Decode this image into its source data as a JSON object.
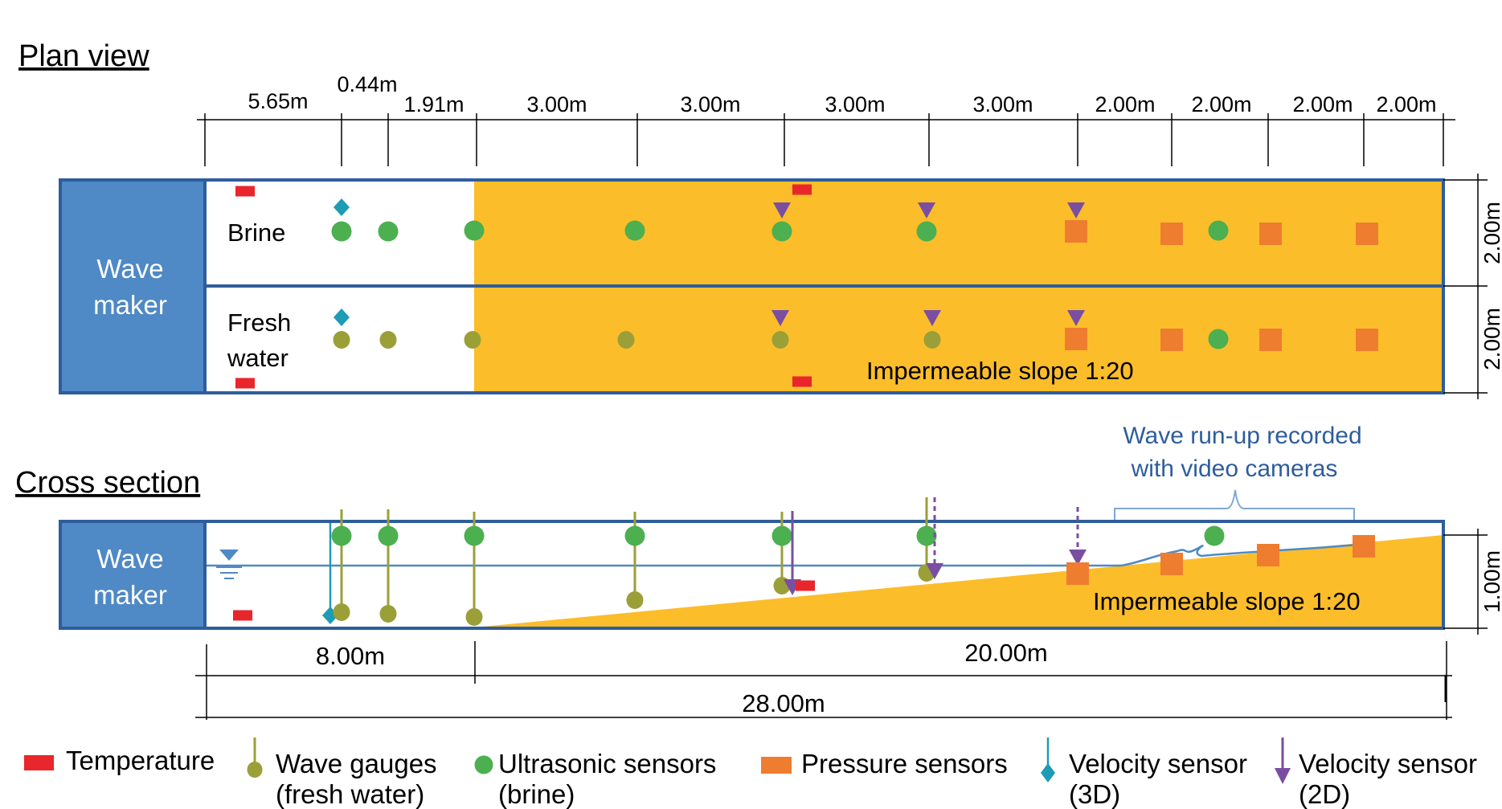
{
  "plan_view": {
    "title": "Plan view",
    "segment_labels": [
      "5.65m",
      "0.44m",
      "1.91m",
      "3.00m",
      "3.00m",
      "3.00m",
      "3.00m",
      "2.00m",
      "2.00m",
      "2.00m",
      "2.00m"
    ],
    "width_labels": [
      "2.00m",
      "2.00m"
    ],
    "wave_maker": [
      "Wave",
      "maker"
    ],
    "channel_brine": "Brine",
    "channel_fresh": [
      "Fresh",
      "water"
    ],
    "slope_label": "Impermeable slope 1:20"
  },
  "cross_section": {
    "title": "Cross section",
    "wave_maker": [
      "Wave",
      "maker"
    ],
    "slope_label": "Impermeable slope 1:20",
    "runup_label": [
      "Wave run-up recorded",
      "with video cameras"
    ],
    "depth_label": "1.00m",
    "length_labels": {
      "flat": "8.00m",
      "slope": "20.00m",
      "total": "28.00m"
    }
  },
  "legend": [
    {
      "icon": "temperature-icon",
      "lines": [
        "Temperature"
      ]
    },
    {
      "icon": "wave-gauge-icon",
      "lines": [
        "Wave gauges",
        "(fresh water)"
      ]
    },
    {
      "icon": "ultrasonic-sensor-icon",
      "lines": [
        "Ultrasonic sensors",
        "(brine)"
      ]
    },
    {
      "icon": "pressure-sensor-icon",
      "lines": [
        "Pressure sensors"
      ]
    },
    {
      "icon": "velocity-3d-icon",
      "lines": [
        "Velocity sensor",
        "(3D)"
      ]
    },
    {
      "icon": "velocity-2d-icon",
      "lines": [
        "Velocity sensor",
        "(2D)"
      ]
    }
  ],
  "colors": {
    "wave_maker": "#4f89c6",
    "tank_border": "#2e5d9c",
    "slope": "#fbbd2a",
    "temperature": "#e8262b",
    "wave_gauge": "#9b9f38",
    "ultrasonic": "#4caf50",
    "pressure": "#ee7d2f",
    "velocity_3d": "#1e9bb5",
    "velocity_2d": "#7a4ea1"
  }
}
